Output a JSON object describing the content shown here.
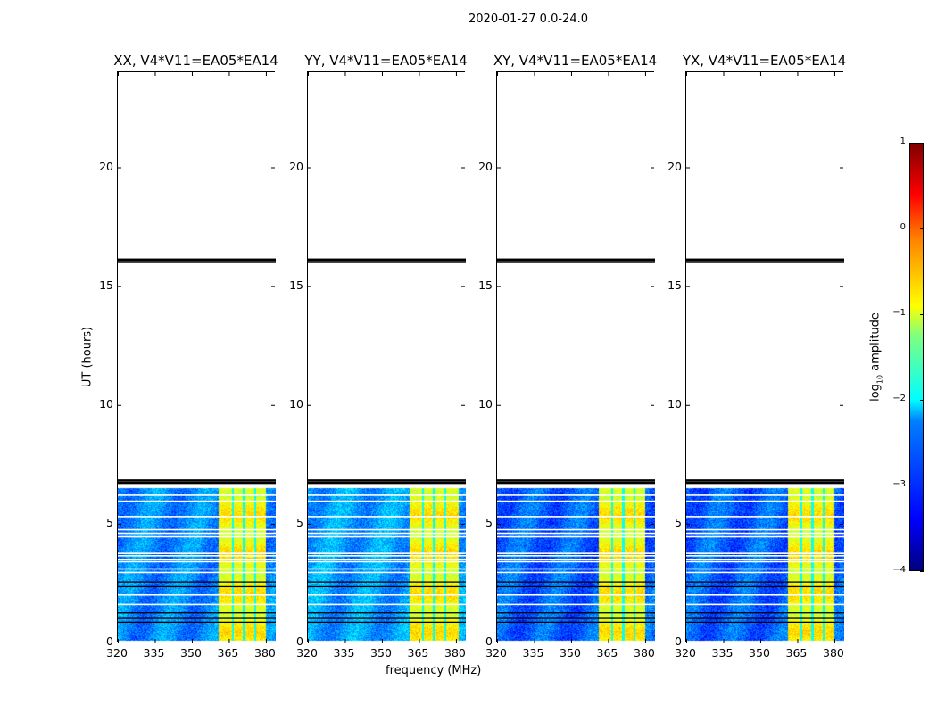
{
  "chart_data": {
    "type": "heatmap",
    "suptitle": "2020-01-27 0.0-24.0",
    "xlabel": "frequency (MHz)",
    "ylabel": "UT (hours)",
    "xlim": [
      320,
      384
    ],
    "ylim": [
      0,
      24
    ],
    "xticks": [
      "320",
      "335",
      "350",
      "365",
      "380"
    ],
    "xtick_values": [
      320,
      335,
      350,
      365,
      380
    ],
    "yticks": [
      "0",
      "5",
      "10",
      "15",
      "20"
    ],
    "ytick_values": [
      0,
      5,
      10,
      15,
      20
    ],
    "panels": [
      {
        "title": "XX, V4*V11=EA05*EA14",
        "band": [
          360.5,
          380
        ],
        "bg": -2.7
      },
      {
        "title": "YY, V4*V11=EA05*EA14",
        "band": [
          361,
          381
        ],
        "bg": -2.6
      },
      {
        "title": "XY, V4*V11=EA05*EA14",
        "band": [
          361,
          380
        ],
        "bg": -2.9
      },
      {
        "title": "YX, V4*V11=EA05*EA14",
        "band": [
          361,
          380
        ],
        "bg": -2.9
      }
    ],
    "data_time_range": [
      0.1,
      6.5
    ],
    "flag_lines_black": [
      0.85,
      1.05,
      1.25,
      2.35,
      2.55,
      6.72,
      6.82,
      16.02,
      16.12
    ],
    "flag_lines_white": [
      1.6,
      2.0,
      2.95,
      3.1,
      3.4,
      3.5,
      3.65,
      3.75,
      4.45,
      4.6,
      4.75,
      5.3,
      5.95,
      6.2
    ],
    "rfi_dips_mhz": [
      366.5,
      371,
      375.5
    ],
    "colorbar": {
      "label": "log10 amplitude",
      "label_main": "log",
      "label_sub": "10",
      "label_rest": " amplitude",
      "range": [
        -4,
        1
      ],
      "ticks": [
        "1",
        "0",
        "−1",
        "−2",
        "−3",
        "−4"
      ],
      "tick_values": [
        1,
        0,
        -1,
        -2,
        -3,
        -4
      ]
    }
  }
}
